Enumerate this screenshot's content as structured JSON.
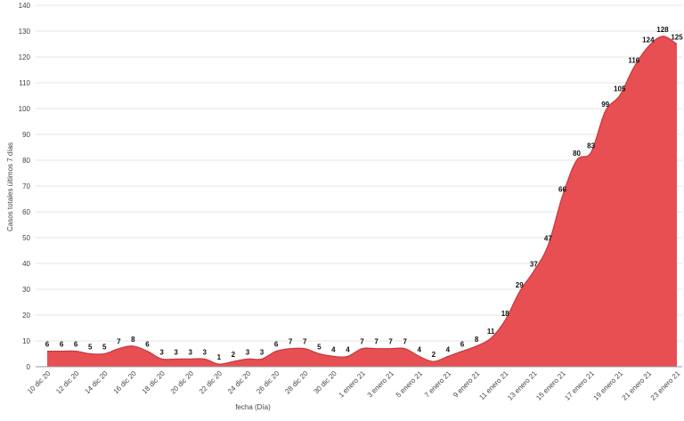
{
  "chart_data": {
    "type": "area",
    "xlabel": "fecha (Día)",
    "ylabel": "Casos totales últimos 7 días",
    "categories": [
      "10 dic 20",
      null,
      "12 dic 20",
      null,
      "14 dic 20",
      null,
      "16 dic 20",
      null,
      "18 dic 20",
      null,
      "20 dic 20",
      null,
      "22 dic 20",
      null,
      "24 dic 20",
      null,
      "26 dic 20",
      null,
      "28 dic 20",
      null,
      "30 dic 20",
      null,
      "1 enero 21",
      null,
      "3 enero 21",
      null,
      "5 enero 21",
      null,
      "7 enero 21",
      null,
      "9 enero 21",
      null,
      "11 enero 21",
      null,
      "13 enero 21",
      null,
      "15 enero 21",
      null,
      "17 enero 21",
      null,
      "19 enero 21",
      null,
      "21 enero 21",
      null,
      "23 enero 21"
    ],
    "values": [
      6,
      6,
      6,
      5,
      5,
      7,
      8,
      6,
      3,
      3,
      3,
      3,
      1,
      2,
      3,
      3,
      6,
      7,
      7,
      5,
      4,
      4,
      7,
      7,
      7,
      7,
      4,
      2,
      4,
      6,
      8,
      11,
      18,
      29,
      37,
      47,
      66,
      80,
      83,
      99,
      105,
      116,
      124,
      128,
      125
    ],
    "color": "#e84f52",
    "line_color": "#c23a3d",
    "ylim": [
      0,
      140
    ],
    "yticks": [
      0,
      10,
      20,
      30,
      40,
      50,
      60,
      70,
      80,
      90,
      100,
      110,
      120,
      130,
      140
    ],
    "grid": true
  }
}
